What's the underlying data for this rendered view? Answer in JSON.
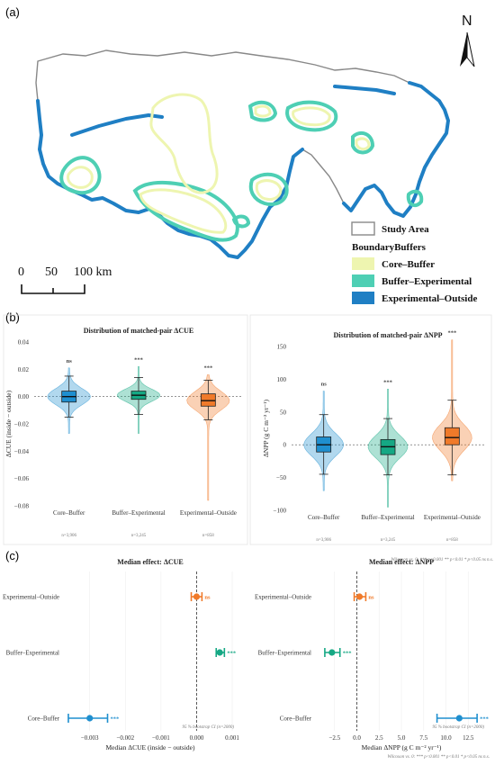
{
  "panels": {
    "a": "(a)",
    "b": "(b)",
    "c": "(c)"
  },
  "map": {
    "north": "N",
    "scale_labels": [
      "0",
      "50",
      "100 km"
    ],
    "legend_title": "BoundaryBuffers",
    "legend_study_area": "Study Area",
    "legend_items": [
      {
        "label": "Core–Buffer",
        "color": "#eef5b0"
      },
      {
        "label": "Buffer–Experimental",
        "color": "#4ecfb4"
      },
      {
        "label": "Experimental–Outside",
        "color": "#1f7fc4"
      }
    ]
  },
  "colors": {
    "core_buffer": "#1f8fcf",
    "buffer_experimental": "#15a884",
    "experimental_outside": "#f07a2a"
  },
  "chart_data": [
    {
      "type": "violin",
      "title": "Distribution of matched-pair ΔCUE",
      "ylabel": "ΔCUE (inside − outside)",
      "ylim": [
        -0.08,
        0.04
      ],
      "yticks": [
        "0.04",
        "0.02",
        "0.00",
        "−0.02",
        "−0.04",
        "−0.06",
        "−0.08"
      ],
      "categories": [
        "Core–Buffer",
        "Buffer–Experimental",
        "Experimental–Outside"
      ],
      "n_labels": [
        "n=3,906",
        "n=3,245",
        "n=858"
      ],
      "significance": [
        "ns",
        "***",
        "***"
      ],
      "violin_range": [
        [
          -0.027,
          0.021
        ],
        [
          -0.027,
          0.022
        ],
        [
          -0.076,
          0.016
        ]
      ],
      "box": [
        {
          "whisker_low": -0.015,
          "q1": -0.004,
          "median": 0.0,
          "q3": 0.004,
          "whisker_high": 0.015
        },
        {
          "whisker_low": -0.013,
          "q1": -0.002,
          "median": 0.001,
          "q3": 0.004,
          "whisker_high": 0.014
        },
        {
          "whisker_low": -0.017,
          "q1": -0.007,
          "median": -0.003,
          "q3": 0.002,
          "whisker_high": 0.012
        }
      ]
    },
    {
      "type": "violin",
      "title": "Distribution of matched-pair ΔNPP",
      "ylabel": "ΔNPP (g C m⁻² yr⁻¹)",
      "ylim": [
        -100,
        150
      ],
      "yticks": [
        "150",
        "100",
        "50",
        "0",
        "−50",
        "−100"
      ],
      "categories": [
        "Core–Buffer",
        "Buffer–Experimental",
        "Experimental–Outside"
      ],
      "n_labels": [
        "n=3,906",
        "n=3,245",
        "n=858"
      ],
      "significance": [
        "ns",
        "***",
        "***"
      ],
      "violin_range": [
        [
          -70,
          82
        ],
        [
          -95,
          85
        ],
        [
          -55,
          160
        ]
      ],
      "box": [
        {
          "whisker_low": -45,
          "q1": -11,
          "median": 0,
          "q3": 12,
          "whisker_high": 46
        },
        {
          "whisker_low": -46,
          "q1": -15,
          "median": -3,
          "q3": 8,
          "whisker_high": 40
        },
        {
          "whisker_low": -46,
          "q1": 0,
          "median": 11,
          "q3": 26,
          "whisker_high": 68
        }
      ],
      "footnote": "Wilcoxon vs. 0:   *** p<0.001  ** p<0.01  * p<0.05  ns n.s."
    },
    {
      "type": "forest",
      "title": "Median effect: ΔCUE",
      "xlabel": "Median ΔCUE (inside − outside)",
      "xlim": [
        -0.0037,
        0.0011
      ],
      "xticks": [
        -0.003,
        -0.002,
        -0.001,
        0.0,
        0.001
      ],
      "xtick_labels": [
        "−0.003",
        "−0.002",
        "−0.001",
        "0.000",
        "0.001"
      ],
      "categories": [
        "Experimental–Outside",
        "Buffer–Experimental",
        "Core–Buffer"
      ],
      "estimate": [
        0.0,
        0.00065,
        -0.003
      ],
      "ci": [
        [
          -0.00015,
          0.00015
        ],
        [
          0.00055,
          0.00078
        ],
        [
          -0.0036,
          -0.0025
        ]
      ],
      "significance": [
        "ns",
        "***",
        "***"
      ],
      "note": "95 % bootstrap CI  (n=2000)"
    },
    {
      "type": "forest",
      "title": "Median effect: ΔNPP",
      "xlabel": "Median ΔNPP (g C m⁻² yr⁻¹)",
      "xlim": [
        -4.5,
        14.5
      ],
      "xticks": [
        -2.5,
        0,
        2.5,
        5,
        7.5,
        10,
        12.5
      ],
      "xtick_labels": [
        "−2.5",
        "0.0",
        "2.5",
        "5.0",
        "7.5",
        "10.0",
        "12.5"
      ],
      "categories": [
        "Experimental–Outside",
        "Buffer–Experimental",
        "Core–Buffer"
      ],
      "estimate": [
        0.3,
        -2.8,
        11.5
      ],
      "ci": [
        [
          -0.3,
          1.0
        ],
        [
          -3.6,
          -1.9
        ],
        [
          9.0,
          13.5
        ]
      ],
      "significance": [
        "ns",
        "***",
        "***"
      ],
      "note": "95 % bootstrap CI  (n=2000)",
      "footnote": "Wilcoxon vs. 0:   *** p<0.001  ** p<0.01  * p<0.05  ns n.s."
    }
  ]
}
